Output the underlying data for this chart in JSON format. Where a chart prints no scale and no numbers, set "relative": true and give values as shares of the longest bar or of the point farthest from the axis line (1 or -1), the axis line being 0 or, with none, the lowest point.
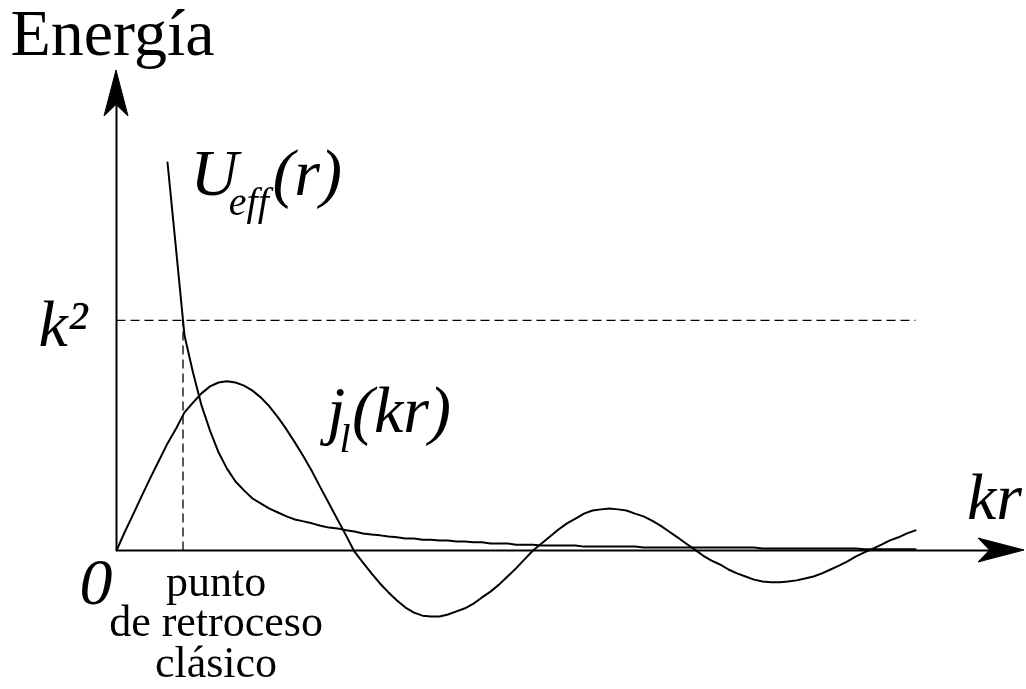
{
  "chart_data": {
    "type": "line",
    "ylabel": "Energía",
    "xlabel": "kr",
    "relative": true,
    "categories": [
      null,
      null,
      null,
      null,
      null,
      null,
      null,
      null,
      null,
      null,
      null,
      null,
      null,
      null,
      null,
      null,
      null,
      null,
      null,
      null,
      null,
      null,
      null,
      null,
      null,
      null,
      null,
      null,
      null,
      null,
      null,
      null,
      null,
      null,
      null,
      null,
      null,
      null,
      null,
      null,
      null,
      null,
      null,
      null,
      null,
      null,
      null,
      null,
      null,
      null,
      null,
      null,
      null,
      null,
      null,
      null,
      null,
      null,
      null,
      null,
      null,
      null,
      null,
      null,
      null,
      null,
      null,
      null,
      null,
      null,
      null,
      null,
      null,
      null,
      null,
      null,
      null,
      null,
      null,
      null,
      null,
      null,
      null,
      null,
      null,
      null,
      null,
      null,
      null,
      null,
      null,
      null,
      null,
      null,
      null
    ],
    "series": [
      {
        "name": "U$_{eff}$(r)",
        "color": "#000000",
        "values": [
          null,
          null,
          null,
          null,
          null,
          null,
          1.0,
          0.778,
          0.554,
          0.459,
          0.374,
          0.309,
          0.253,
          0.211,
          0.178,
          0.155,
          0.134,
          0.121,
          0.108,
          0.098,
          0.088,
          0.08,
          0.075,
          0.07,
          0.064,
          0.059,
          0.057,
          0.052,
          0.049,
          0.044,
          0.041,
          0.039,
          0.036,
          0.034,
          0.031,
          0.031,
          0.028,
          0.028,
          0.026,
          0.026,
          0.023,
          0.023,
          0.021,
          0.021,
          0.018,
          0.018,
          0.018,
          0.015,
          0.015,
          0.015,
          0.013,
          0.013,
          0.013,
          0.013,
          0.013,
          0.01,
          0.01,
          0.01,
          0.01,
          0.01,
          0.01,
          0.01,
          0.008,
          0.008,
          0.008,
          0.008,
          0.008,
          0.008,
          0.008,
          0.008,
          0.008,
          0.008,
          0.008,
          0.008,
          0.008,
          0.008,
          0.005,
          0.005,
          0.005,
          0.005,
          0.005,
          0.005,
          0.005,
          0.005,
          0.005,
          0.005,
          0.005,
          0.005,
          0.003,
          0.003,
          0.003,
          0.003,
          0.003,
          0.003,
          0.003
        ]
      },
      {
        "name": "j$_{l}$(kr)",
        "color": "#000000",
        "values": [
          0,
          0.049,
          0.095,
          0.142,
          0.188,
          0.232,
          0.276,
          0.314,
          0.356,
          0.381,
          0.405,
          0.423,
          0.433,
          0.436,
          0.433,
          0.425,
          0.412,
          0.394,
          0.371,
          0.343,
          0.312,
          0.278,
          0.242,
          0.204,
          0.162,
          0.121,
          0.08,
          0.039,
          -0.003,
          -0.031,
          -0.059,
          -0.085,
          -0.108,
          -0.129,
          -0.147,
          -0.16,
          -0.168,
          -0.17,
          -0.17,
          -0.165,
          -0.157,
          -0.149,
          -0.137,
          -0.121,
          -0.106,
          -0.088,
          -0.067,
          -0.046,
          -0.023,
          0,
          0.018,
          0.036,
          0.054,
          0.07,
          0.082,
          0.095,
          0.103,
          0.106,
          0.108,
          0.106,
          0.103,
          0.095,
          0.088,
          0.077,
          0.064,
          0.049,
          0.034,
          0.018,
          0.003,
          -0.013,
          -0.026,
          -0.036,
          -0.049,
          -0.059,
          -0.067,
          -0.075,
          -0.08,
          -0.082,
          -0.082,
          -0.08,
          -0.077,
          -0.072,
          -0.067,
          -0.059,
          -0.049,
          -0.039,
          -0.028,
          -0.015,
          -0.005,
          0.005,
          0.015,
          0.026,
          0.034,
          0.044,
          0.052
        ]
      }
    ],
    "ref_lines": [
      {
        "axis": "y",
        "value": 0.593,
        "label": "k²",
        "line_style": "dashed",
        "color": "#000000"
      }
    ],
    "annotations": [
      "0",
      "punto\nde retroceso\nclásico"
    ]
  }
}
